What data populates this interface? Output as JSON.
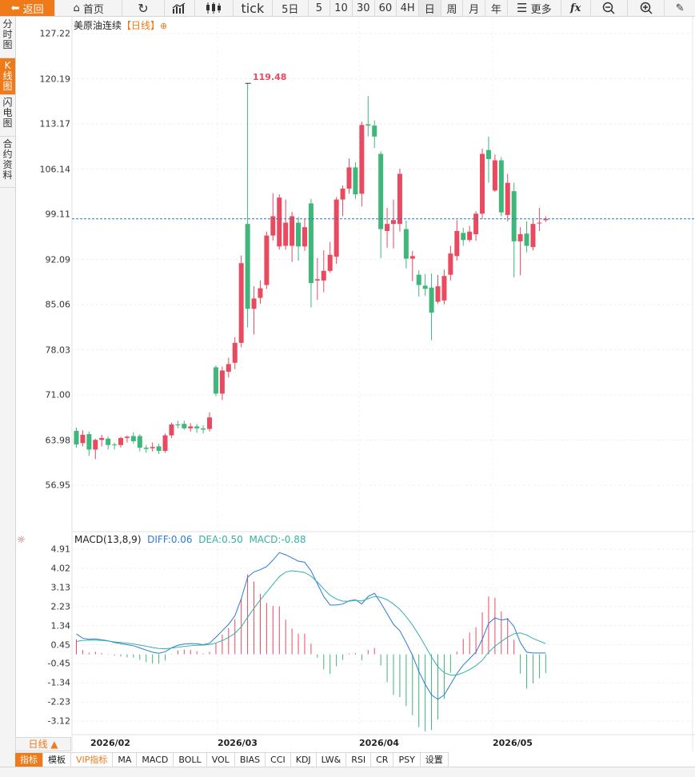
{
  "toolbar": {
    "back": "返回",
    "home": "首页",
    "tick": "tick",
    "periods": [
      "5日",
      "5",
      "10",
      "30",
      "60",
      "4H",
      "日",
      "周",
      "月",
      "年"
    ],
    "more": "更多"
  },
  "left_tabs": [
    "分时图",
    "K线图",
    "闪电图",
    "合约资料"
  ],
  "chart": {
    "instrument": "美原油连续",
    "period_tag": "【日线】",
    "peak_label": "119.48",
    "price_axis": [
      "127.22",
      "120.19",
      "113.17",
      "106.14",
      "99.11",
      "92.09",
      "85.06",
      "78.03",
      "71.00",
      "63.98",
      "56.95"
    ],
    "macd_axis": [
      "4.91",
      "4.02",
      "3.13",
      "2.23",
      "1.34",
      "0.45",
      "-0.45",
      "-1.34",
      "-2.23",
      "-3.12"
    ],
    "x_axis": [
      "2026/02",
      "2026/03",
      "2026/04",
      "2026/05"
    ],
    "current_price": 98.4
  },
  "macd_legend": {
    "name": "MACD(13,8,9)",
    "diff": "DIFF:0.06",
    "dea": "DEA:0.50",
    "macd": "MACD:-0.88"
  },
  "period_selector": "日线 ▲",
  "indicator_tabs": [
    "指标",
    "模板",
    "VIP指标",
    "MA",
    "MACD",
    "BOLL",
    "VOL",
    "BIAS",
    "CCI",
    "KDJ",
    "LW&",
    "RSI",
    "CR",
    "PSY",
    "设置"
  ],
  "colors": {
    "up": "#e84a5f",
    "down": "#3fb67a",
    "accent": "#ef7a1a",
    "diff": "#2b7bd6",
    "dea": "#35b1a8"
  },
  "chart_data": {
    "type": "candlestick",
    "title": "美原油连续",
    "x_ticks": [
      "2026/02",
      "2026/03",
      "2026/04",
      "2026/05"
    ],
    "ylim": [
      56.95,
      127.22
    ],
    "candles": [
      [
        65.4,
        63.3,
        65.9,
        62.8
      ],
      [
        63.5,
        64.8,
        65.5,
        63.0
      ],
      [
        64.9,
        62.5,
        65.3,
        61.5
      ],
      [
        62.5,
        64.0,
        64.2,
        61.0
      ],
      [
        64.0,
        64.3,
        64.8,
        63.0
      ],
      [
        64.2,
        63.2,
        64.5,
        62.5
      ],
      [
        63.3,
        63.2,
        63.6,
        62.5
      ],
      [
        63.2,
        64.3,
        64.5,
        62.8
      ],
      [
        64.3,
        64.5,
        64.7,
        63.6
      ],
      [
        64.6,
        63.8,
        65.2,
        63.4
      ],
      [
        64.6,
        62.8,
        64.9,
        62.2
      ],
      [
        62.8,
        62.6,
        63.2,
        62.0
      ],
      [
        62.7,
        62.9,
        63.6,
        62.2
      ],
      [
        63.0,
        62.3,
        63.4,
        61.8
      ],
      [
        62.3,
        64.7,
        65.0,
        62.0
      ],
      [
        64.7,
        66.4,
        66.7,
        64.3
      ],
      [
        66.4,
        66.3,
        67.0,
        65.8
      ],
      [
        66.5,
        65.8,
        67.0,
        65.6
      ],
      [
        65.8,
        66.1,
        66.6,
        65.3
      ],
      [
        66.1,
        65.8,
        66.5,
        65.1
      ],
      [
        65.8,
        65.6,
        66.3,
        65.0
      ],
      [
        65.7,
        67.5,
        68.3,
        65.3
      ],
      [
        75.3,
        71.2,
        75.6,
        70.8
      ],
      [
        71.2,
        74.8,
        75.4,
        70.2
      ],
      [
        74.6,
        75.8,
        76.8,
        73.7
      ],
      [
        76.0,
        79.1,
        80.0,
        75.0
      ],
      [
        79.1,
        91.5,
        92.7,
        78.4
      ],
      [
        97.6,
        84.4,
        119.48,
        81.5
      ],
      [
        84.4,
        86.0,
        87.9,
        80.4
      ],
      [
        86.1,
        87.6,
        88.8,
        85.2
      ],
      [
        88.1,
        95.8,
        96.4,
        87.5
      ],
      [
        95.8,
        98.8,
        102.4,
        95.0
      ],
      [
        94.1,
        101.7,
        102.2,
        93.6
      ],
      [
        94.2,
        97.8,
        101.4,
        93.6
      ],
      [
        94.2,
        98.8,
        99.5,
        91.7
      ],
      [
        97.8,
        94.1,
        98.7,
        91.9
      ],
      [
        94.1,
        97.1,
        98.4,
        93.4
      ],
      [
        100.8,
        88.4,
        101.5,
        84.6
      ],
      [
        88.8,
        89.0,
        92.3,
        85.8
      ],
      [
        88.8,
        90.3,
        93.5,
        87.0
      ],
      [
        90.3,
        92.8,
        94.8,
        90.0
      ],
      [
        92.5,
        101.4,
        101.8,
        91.4
      ],
      [
        101.4,
        103.1,
        103.6,
        98.8
      ],
      [
        103.1,
        106.4,
        107.8,
        102.3
      ],
      [
        106.4,
        102.2,
        107.2,
        101.5
      ],
      [
        102.3,
        113.0,
        113.5,
        100.3
      ],
      [
        113.1,
        112.9,
        117.5,
        111.2
      ],
      [
        112.9,
        111.2,
        113.7,
        109.4
      ],
      [
        108.5,
        96.8,
        108.9,
        92.3
      ],
      [
        96.5,
        97.6,
        100.1,
        93.9
      ],
      [
        97.6,
        98.2,
        101.4,
        93.8
      ],
      [
        97.6,
        105.4,
        106.2,
        96.4
      ],
      [
        96.8,
        92.2,
        98.1,
        90.7
      ],
      [
        92.2,
        92.6,
        93.4,
        88.7
      ],
      [
        89.7,
        88.1,
        90.4,
        86.3
      ],
      [
        88.0,
        87.5,
        89.8,
        86.4
      ],
      [
        87.7,
        83.8,
        89.9,
        79.5
      ],
      [
        85.5,
        87.9,
        89.7,
        85.2
      ],
      [
        85.7,
        89.5,
        90.5,
        85.1
      ],
      [
        89.7,
        93.0,
        94.2,
        88.8
      ],
      [
        92.6,
        96.5,
        98.2,
        91.9
      ],
      [
        96.2,
        95.1,
        97.0,
        94.2
      ],
      [
        95.1,
        96.4,
        97.3,
        94.8
      ],
      [
        96.0,
        99.2,
        99.6,
        95.0
      ],
      [
        99.2,
        108.5,
        109.3,
        98.4
      ],
      [
        109.1,
        107.7,
        111.2,
        104.0
      ],
      [
        102.8,
        107.5,
        108.4,
        102.6
      ],
      [
        107.5,
        99.4,
        108.0,
        98.8
      ],
      [
        99.0,
        104.0,
        105.4,
        98.0
      ],
      [
        102.7,
        94.9,
        104.0,
        89.3
      ],
      [
        94.9,
        96.0,
        97.1,
        89.6
      ],
      [
        96.1,
        94.2,
        98.0,
        93.2
      ],
      [
        94.0,
        97.6,
        98.3,
        93.5
      ],
      [
        97.8,
        97.8,
        100.1,
        96.5
      ],
      [
        98.2,
        98.4,
        98.8,
        97.9
      ]
    ],
    "macd": {
      "diff": [
        0.95,
        0.75,
        0.7,
        0.72,
        0.68,
        0.63,
        0.55,
        0.5,
        0.45,
        0.4,
        0.3,
        0.2,
        0.1,
        0.05,
        0.12,
        0.3,
        0.42,
        0.48,
        0.5,
        0.49,
        0.45,
        0.52,
        0.8,
        1.1,
        1.4,
        1.8,
        2.6,
        3.6,
        3.85,
        3.95,
        4.1,
        4.4,
        4.75,
        4.65,
        4.5,
        4.35,
        4.3,
        3.9,
        3.3,
        2.7,
        2.3,
        2.3,
        2.35,
        2.5,
        2.55,
        2.35,
        2.7,
        2.85,
        2.4,
        1.9,
        1.4,
        1.1,
        0.55,
        -0.05,
        -0.8,
        -1.4,
        -1.9,
        -2.1,
        -1.9,
        -1.4,
        -0.9,
        -0.5,
        -0.2,
        0.1,
        0.7,
        1.45,
        1.7,
        1.6,
        1.65,
        1.3,
        0.55,
        0.1,
        0.06,
        0.06,
        0.06
      ],
      "dea": [
        0.6,
        0.65,
        0.66,
        0.66,
        0.65,
        0.62,
        0.58,
        0.55,
        0.52,
        0.48,
        0.43,
        0.38,
        0.32,
        0.27,
        0.26,
        0.29,
        0.33,
        0.37,
        0.4,
        0.42,
        0.43,
        0.46,
        0.53,
        0.64,
        0.79,
        0.98,
        1.29,
        1.73,
        2.15,
        2.54,
        2.9,
        3.27,
        3.63,
        3.84,
        3.9,
        3.87,
        3.82,
        3.65,
        3.38,
        3.05,
        2.76,
        2.58,
        2.48,
        2.48,
        2.52,
        2.49,
        2.6,
        2.7,
        2.66,
        2.55,
        2.35,
        2.1,
        1.76,
        1.37,
        0.9,
        0.4,
        -0.13,
        -0.58,
        -0.86,
        -0.97,
        -0.96,
        -0.86,
        -0.71,
        -0.53,
        -0.28,
        0.1,
        0.38,
        0.6,
        0.8,
        0.96,
        1.0,
        0.9,
        0.74,
        0.62,
        0.5
      ]
    }
  }
}
